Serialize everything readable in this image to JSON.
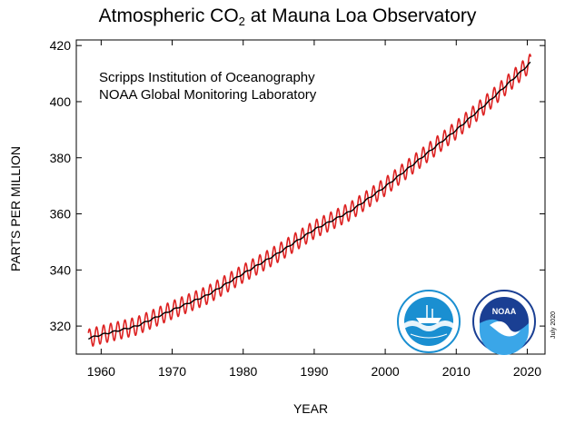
{
  "chart_data": {
    "type": "line",
    "title_parts": {
      "prefix": "Atmospheric CO",
      "subscript": "2",
      "suffix": " at Mauna Loa Observatory"
    },
    "title": "Atmospheric CO2 at Mauna Loa Observatory",
    "xlabel": "YEAR",
    "ylabel": "PARTS PER MILLION",
    "xlim": [
      1956.5,
      2022.5
    ],
    "ylim": [
      310,
      422
    ],
    "x_ticks": [
      1960,
      1970,
      1980,
      1990,
      2000,
      2010,
      2020
    ],
    "y_ticks": [
      320,
      340,
      360,
      380,
      400,
      420
    ],
    "grid": false,
    "annotations": [
      "Scripps Institution of Oceanography",
      "NOAA Global Monitoring Laboratory"
    ],
    "date_stamp": "July 2020",
    "series": [
      {
        "color": "#dd2222",
        "style": "monthly",
        "seasonal_amplitude_ppm": 3.2,
        "x": [
          1958,
          1960,
          1965,
          1970,
          1975,
          1980,
          1985,
          1990,
          1995,
          2000,
          2005,
          2010,
          2015,
          2020.5
        ],
        "values": [
          315.5,
          316.9,
          320.0,
          325.7,
          331.1,
          338.7,
          346.1,
          354.4,
          360.8,
          369.7,
          379.8,
          389.9,
          401.0,
          414.0
        ]
      },
      {
        "color": "#000000",
        "style": "trend",
        "x": [
          1958,
          1960,
          1965,
          1970,
          1975,
          1980,
          1985,
          1990,
          1995,
          2000,
          2005,
          2010,
          2015,
          2020.5
        ],
        "values": [
          315.5,
          316.9,
          320.0,
          325.7,
          331.1,
          338.7,
          346.1,
          354.4,
          360.8,
          369.7,
          379.8,
          389.9,
          401.0,
          414.0
        ]
      }
    ]
  },
  "logos": [
    {
      "name": "Scripps Institution of Oceanography",
      "color": "#1a8fd1"
    },
    {
      "name": "NOAA",
      "color": "#1a3f93"
    }
  ]
}
